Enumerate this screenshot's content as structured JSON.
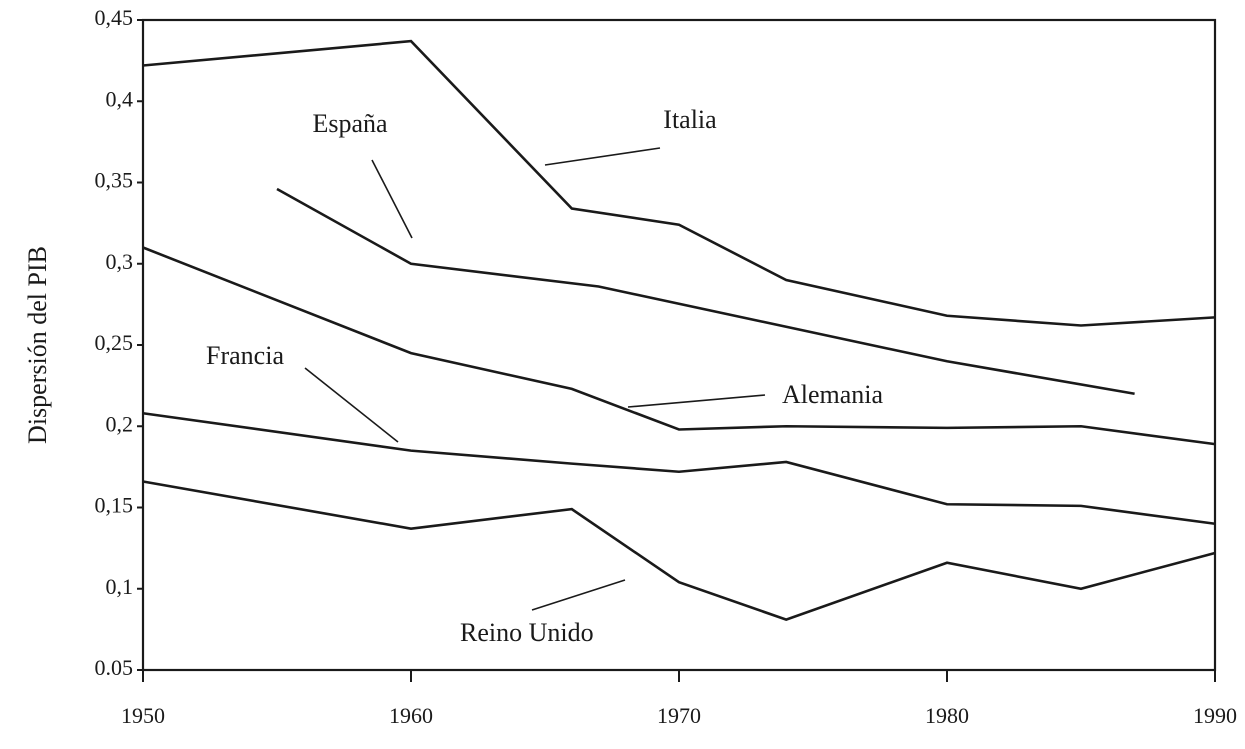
{
  "chart_data": {
    "type": "line",
    "y_label": "Dispersión del PIB",
    "xlim": [
      1950,
      1990
    ],
    "xticks": [
      1950,
      1960,
      1970,
      1980,
      1990
    ],
    "ylim": [
      0.05,
      0.45
    ],
    "yticks": [
      {
        "value": 0.05,
        "label": "0.05"
      },
      {
        "value": 0.1,
        "label": "0,1"
      },
      {
        "value": 0.15,
        "label": "0,15"
      },
      {
        "value": 0.2,
        "label": "0,2"
      },
      {
        "value": 0.25,
        "label": "0,25"
      },
      {
        "value": 0.3,
        "label": "0,3"
      },
      {
        "value": 0.35,
        "label": "0,35"
      },
      {
        "value": 0.4,
        "label": "0,4"
      },
      {
        "value": 0.45,
        "label": "0,45"
      }
    ],
    "series": [
      {
        "name": "Italia",
        "color": "#1a1a1a",
        "x": [
          1950,
          1960,
          1966,
          1970,
          1974,
          1980,
          1985,
          1990
        ],
        "values": [
          0.422,
          0.437,
          0.334,
          0.324,
          0.29,
          0.268,
          0.262,
          0.267
        ]
      },
      {
        "name": "España",
        "color": "#1a1a1a",
        "x": [
          1955,
          1960,
          1967,
          1980,
          1987
        ],
        "values": [
          0.346,
          0.3,
          0.286,
          0.24,
          0.22
        ]
      },
      {
        "name": "Alemania",
        "color": "#1a1a1a",
        "x": [
          1950,
          1960,
          1966,
          1970,
          1974,
          1980,
          1985,
          1990
        ],
        "values": [
          0.31,
          0.245,
          0.223,
          0.198,
          0.2,
          0.199,
          0.2,
          0.189
        ]
      },
      {
        "name": "Francia",
        "color": "#1a1a1a",
        "x": [
          1950,
          1960,
          1966,
          1970,
          1974,
          1980,
          1985,
          1990
        ],
        "values": [
          0.208,
          0.185,
          0.177,
          0.172,
          0.178,
          0.152,
          0.151,
          0.14
        ]
      },
      {
        "name": "Reino Unido",
        "color": "#1a1a1a",
        "x": [
          1950,
          1960,
          1966,
          1970,
          1974,
          1980,
          1985,
          1990
        ],
        "values": [
          0.166,
          0.137,
          0.149,
          0.104,
          0.081,
          0.116,
          0.1,
          0.122
        ]
      }
    ]
  }
}
